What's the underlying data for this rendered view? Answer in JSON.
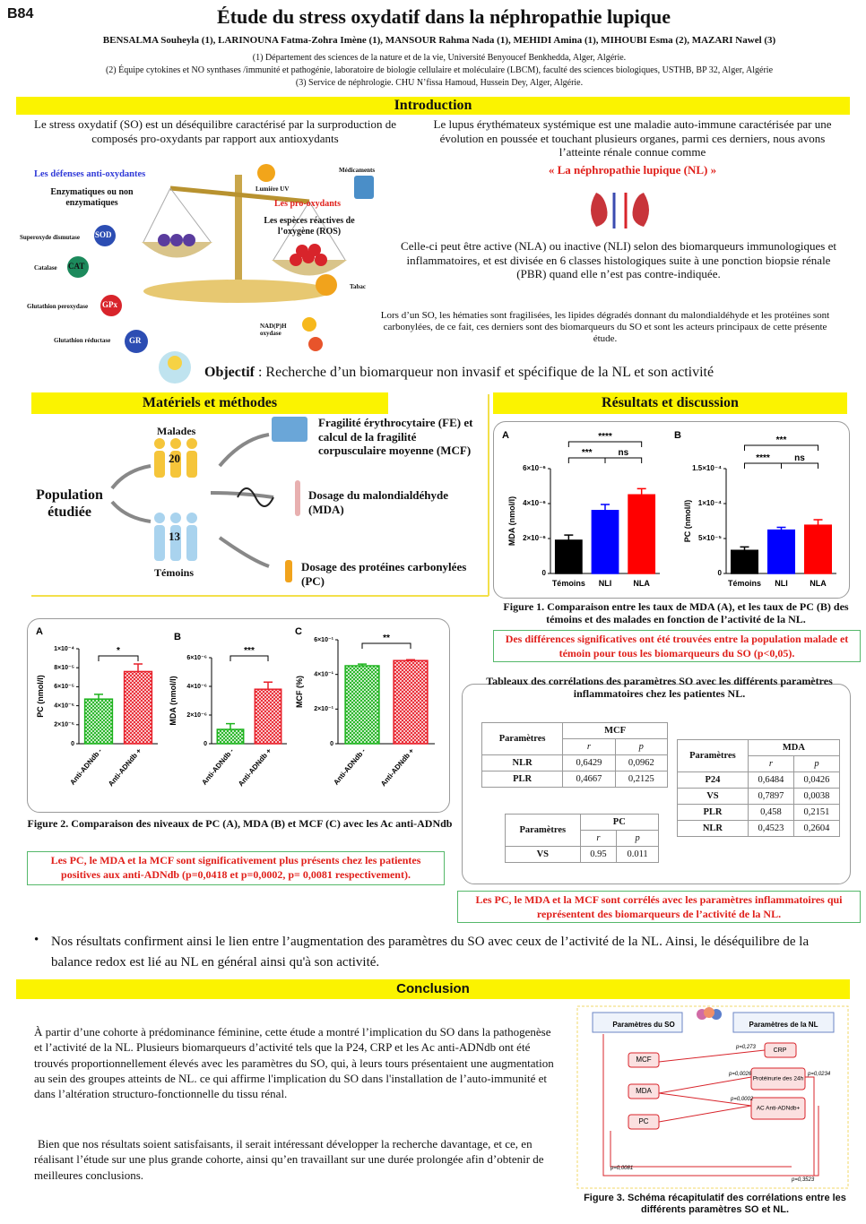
{
  "badge": "B84",
  "header": {
    "title": "Étude du stress oxydatif dans la néphropathie lupique",
    "authors": "BENSALMA Souheyla (1), LARINOUNA Fatma-Zohra Imène (1), MANSOUR Rahma Nada (1), MEHIDI Amina (1), MIHOUBI Esma (2), MAZARI Nawel (3)",
    "affiliations": [
      "(1) Département des sciences de la nature et de la vie, Université Benyoucef Benkhedda, Alger, Algérie.",
      "(2) Équipe cytokines et NO synthases /immunité et pathogénie, laboratoire de biologie cellulaire et moléculaire (LBCM), faculté des sciences biologiques, USTHB, BP 32, Alger, Algérie",
      "(3) Service de néphrologie. CHU N’fissa Hamoud, Hussein Dey, Alger, Algérie."
    ]
  },
  "introduction": {
    "title": "Introduction",
    "left_text": "Le stress oxydatif (SO) est un déséquilibre caractérisé par la surproduction de composés pro-oxydants par rapport aux antioxydants",
    "diagram": {
      "antioxidant_title": "Les défenses anti-oxydantes",
      "antioxidant_subtitle": "Enzymatiques ou non enzymatiques",
      "enzymes": [
        {
          "name": "Superoxyde dismutase",
          "abbr": "SOD"
        },
        {
          "name": "Catalase",
          "abbr": "CAT"
        },
        {
          "name": "Glutathion peroxydase",
          "abbr": "GPx"
        },
        {
          "name": "Glutathion réductase",
          "abbr": "GR"
        }
      ],
      "prooxidant_title": "Les pro-oxydants",
      "ros": "Les espèces réactives de l’oxygène (ROS)",
      "sources": [
        "Lumière UV",
        "Médicaments",
        "Tabac",
        "NAD(P)H oxydase"
      ]
    },
    "right_text": "Le lupus érythémateux systémique est une maladie auto-immune caractérisée par une évolution en poussée et touchant plusieurs organes, parmi ces derniers, nous avons l’atteinte rénale connue comme",
    "highlight": "« La néphropathie lupique (NL) »",
    "right_text_2": "Celle-ci peut être active (NLA) ou inactive (NLI) selon des biomarqueurs immunologiques et inflammatoires, et est divisée en 6 classes histologiques suite à une ponction biopsie rénale (PBR) quand elle n’est pas contre-indiquée.",
    "right_text_3": "Lors d’un SO, les hématies sont fragilisées, les lipides dégradés donnant du malondialdéhyde et les protéines sont carbonylées, de ce fait, ces derniers sont des biomarqueurs du SO et sont les acteurs principaux de cette présente étude."
  },
  "objective": {
    "label": "Objectif",
    "text": " : Recherche d’un biomarqueur non invasif et spécifique de la NL et son activité"
  },
  "methods": {
    "title": "Matériels et méthodes",
    "population": "Population étudiée",
    "patients": {
      "label": "Malades",
      "count": 20
    },
    "controls": {
      "label": "Témoins",
      "count": 13
    },
    "items": [
      "Fragilité érythrocytaire (FE) et calcul de la fragilité corpusculaire moyenne (MCF)",
      "Dosage du malondialdéhyde (MDA)",
      "Dosage des protéines carbonylées (PC)"
    ]
  },
  "results": {
    "title": "Résultats et discussion",
    "figure1_caption": "Figure 1. Comparaison entre les taux de MDA (A), et les taux de PC (B) des témoins et des malades en fonction de l’activité de la NL.",
    "figure1_note": "Des différences significatives ont été trouvées entre la population malade et témoin pour tous les biomarqueurs du SO (p<0,05).",
    "tables_title": "Tableaux des corrélations des paramètres SO avec les différents paramètres inflammatoires chez les patientes NL.",
    "tables": {
      "mcf": {
        "header": [
          "Paramètres",
          "MCF"
        ],
        "subheader": [
          "r",
          "p"
        ],
        "rows": [
          [
            "NLR",
            "0,6429",
            "0,0962"
          ],
          [
            "PLR",
            "0,4667",
            "0,2125"
          ]
        ]
      },
      "mda": {
        "header": [
          "Paramètres",
          "MDA"
        ],
        "subheader": [
          "r",
          "p"
        ],
        "rows": [
          [
            "P24",
            "0,6484",
            "0,0426"
          ],
          [
            "VS",
            "0,7897",
            "0,0038"
          ],
          [
            "PLR",
            "0,458",
            "0,2151"
          ],
          [
            "NLR",
            "0,4523",
            "0,2604"
          ]
        ]
      },
      "pc": {
        "header": [
          "Paramètres",
          "PC"
        ],
        "subheader": [
          "r",
          "p"
        ],
        "rows": [
          [
            "VS",
            "0.95",
            "0.011"
          ]
        ]
      }
    },
    "tables_note": "Les PC, le MDA et la MCF sont corrélés avec les paramètres inflammatoires qui représentent des biomarqueurs de l’activité de la NL.",
    "figure2_caption": "Figure 2. Comparaison des niveaux de PC (A), MDA (B) et MCF (C) avec les Ac anti-ADNdb",
    "figure2_note": "Les PC, le MDA et la MCF sont significativement plus présents chez les patientes positives aux anti-ADNdb (p=0,0418 et p=0,0002, p= 0,0081 respectivement)."
  },
  "summary": "Nos résultats confirment ainsi le lien entre l’augmentation des paramètres du SO avec ceux de l’activité de la NL. Ainsi, le déséquilibre de la balance redox est lié au NL en général ainsi qu'à son activité.",
  "conclusion": {
    "title": "Conclusion",
    "paragraphs": [
      "À partir d’une cohorte à prédominance féminine, cette étude a montré l’implication du SO dans la pathogenèse et l’activité de la NL. Plusieurs biomarqueurs d’activité tels que la P24, CRP et les Ac anti-ADNdb ont été trouvés proportionnellement élevés avec les paramètres du SO, qui, à leurs tours présentaient une augmentation au sein des groupes atteints de NL. ce qui affirme l'implication du SO dans l'installation de l’auto-immunité et dans l’altération structuro-fonctionnelle du tissu rénal.",
      "Bien que nos résultats soient satisfaisants, il serait intéressant développer la recherche davantage, et ce, en réalisant l’étude sur une plus grande cohorte, ainsi qu’en travaillant sur une durée prolongée afin d’obtenir de meilleures conclusions."
    ],
    "figure3": {
      "headers": [
        "Paramètres du SO",
        "Paramètres de la NL"
      ],
      "so_params": [
        "MCF",
        "MDA",
        "PC"
      ],
      "nl_params": [
        "CRP",
        "Protéinurie des 24h",
        "AC Anti-ADNdb+"
      ],
      "p_values": [
        "p=0,273",
        "p=0,0026",
        "p=0,0234",
        "p=0,0002",
        "p=0,0081",
        "p=0,3523"
      ],
      "caption": "Figure 3. Schéma récapitulatif des corrélations entre les différents paramètres SO et NL."
    }
  },
  "chart_data": [
    {
      "type": "bar",
      "panel": "A",
      "ylabel": "MDA (nmol/l)",
      "categories": [
        "Témoins",
        "NLI",
        "NLA"
      ],
      "values": [
        1.9e-06,
        3.6e-06,
        4.5e-06
      ],
      "errors": [
        3e-07,
        3.5e-07,
        3.5e-07
      ],
      "colors": [
        "#000000",
        "#0000ff",
        "#ff0000"
      ],
      "ylim": [
        0,
        6e-06
      ],
      "yticks": [
        0,
        {
          "value": 2e-06,
          "label": "2×10⁻⁶"
        },
        {
          "value": 4e-06,
          "label": "4×10⁻⁶"
        },
        {
          "value": 6e-06,
          "label": "6×10⁻⁶"
        }
      ],
      "significance": [
        "****",
        "***",
        "ns"
      ]
    },
    {
      "type": "bar",
      "panel": "B",
      "ylabel": "PC (nmol/l)",
      "categories": [
        "Témoins",
        "NLI",
        "NLA"
      ],
      "values": [
        3.3e-05,
        6.2e-05,
        6.9e-05
      ],
      "errors": [
        5e-06,
        4e-06,
        8e-06
      ],
      "colors": [
        "#000000",
        "#0000ff",
        "#ff0000"
      ],
      "ylim": [
        0,
        0.00015
      ],
      "yticks": [
        0,
        {
          "value": 5e-05,
          "label": "5×10⁻⁵"
        },
        {
          "value": 0.0001,
          "label": "1×10⁻⁴"
        },
        {
          "value": 0.00015,
          "label": "1.5×10⁻⁴"
        }
      ],
      "significance": [
        "***",
        "****",
        "ns"
      ]
    },
    {
      "type": "bar",
      "panel": "A",
      "ylabel": "PC (nmol/l)",
      "categories": [
        "Anti-ADNdb -",
        "Anti-ADNdb +"
      ],
      "values": [
        4.7e-05,
        7.6e-05
      ],
      "errors": [
        5e-06,
        8e-06
      ],
      "colors": [
        "#1db31d",
        "#e8202a"
      ],
      "fill": "hatched",
      "ylim": [
        0,
        0.0001
      ],
      "yticks": [
        0,
        {
          "value": 2e-05,
          "label": "2×10⁻⁵"
        },
        {
          "value": 4e-05,
          "label": "4×10⁻⁵"
        },
        {
          "value": 6e-05,
          "label": "6×10⁻⁵"
        },
        {
          "value": 8e-05,
          "label": "8×10⁻⁵"
        },
        {
          "value": 0.0001,
          "label": "1×10⁻⁴"
        }
      ],
      "significance": [
        "*"
      ]
    },
    {
      "type": "bar",
      "panel": "B",
      "ylabel": "MDA (nmol/l)",
      "categories": [
        "Anti-ADNdb -",
        "Anti-ADNdb +"
      ],
      "values": [
        1e-06,
        3.8e-06
      ],
      "errors": [
        4e-07,
        5e-07
      ],
      "colors": [
        "#1db31d",
        "#e8202a"
      ],
      "fill": "hatched",
      "ylim": [
        0,
        6e-06
      ],
      "yticks": [
        0,
        {
          "value": 2e-06,
          "label": "2×10⁻⁶"
        },
        {
          "value": 4e-06,
          "label": "4×10⁻⁶"
        },
        {
          "value": 6e-06,
          "label": "6×10⁻⁶"
        }
      ],
      "significance": [
        "***"
      ]
    },
    {
      "type": "bar",
      "panel": "C",
      "ylabel": "MCF (%)",
      "categories": [
        "Anti-ADNdb -",
        "Anti-ADNdb +"
      ],
      "values": [
        0.45,
        0.48
      ],
      "errors": [
        0.01,
        0.005
      ],
      "colors": [
        "#1db31d",
        "#e8202a"
      ],
      "fill": "hatched",
      "ylim": [
        0,
        0.6
      ],
      "yticks": [
        0,
        {
          "value": 0.2,
          "label": "2×10⁻¹"
        },
        {
          "value": 0.4,
          "label": "4×10⁻¹"
        },
        {
          "value": 0.6,
          "label": "6×10⁻¹"
        }
      ],
      "significance": [
        "**"
      ]
    }
  ]
}
